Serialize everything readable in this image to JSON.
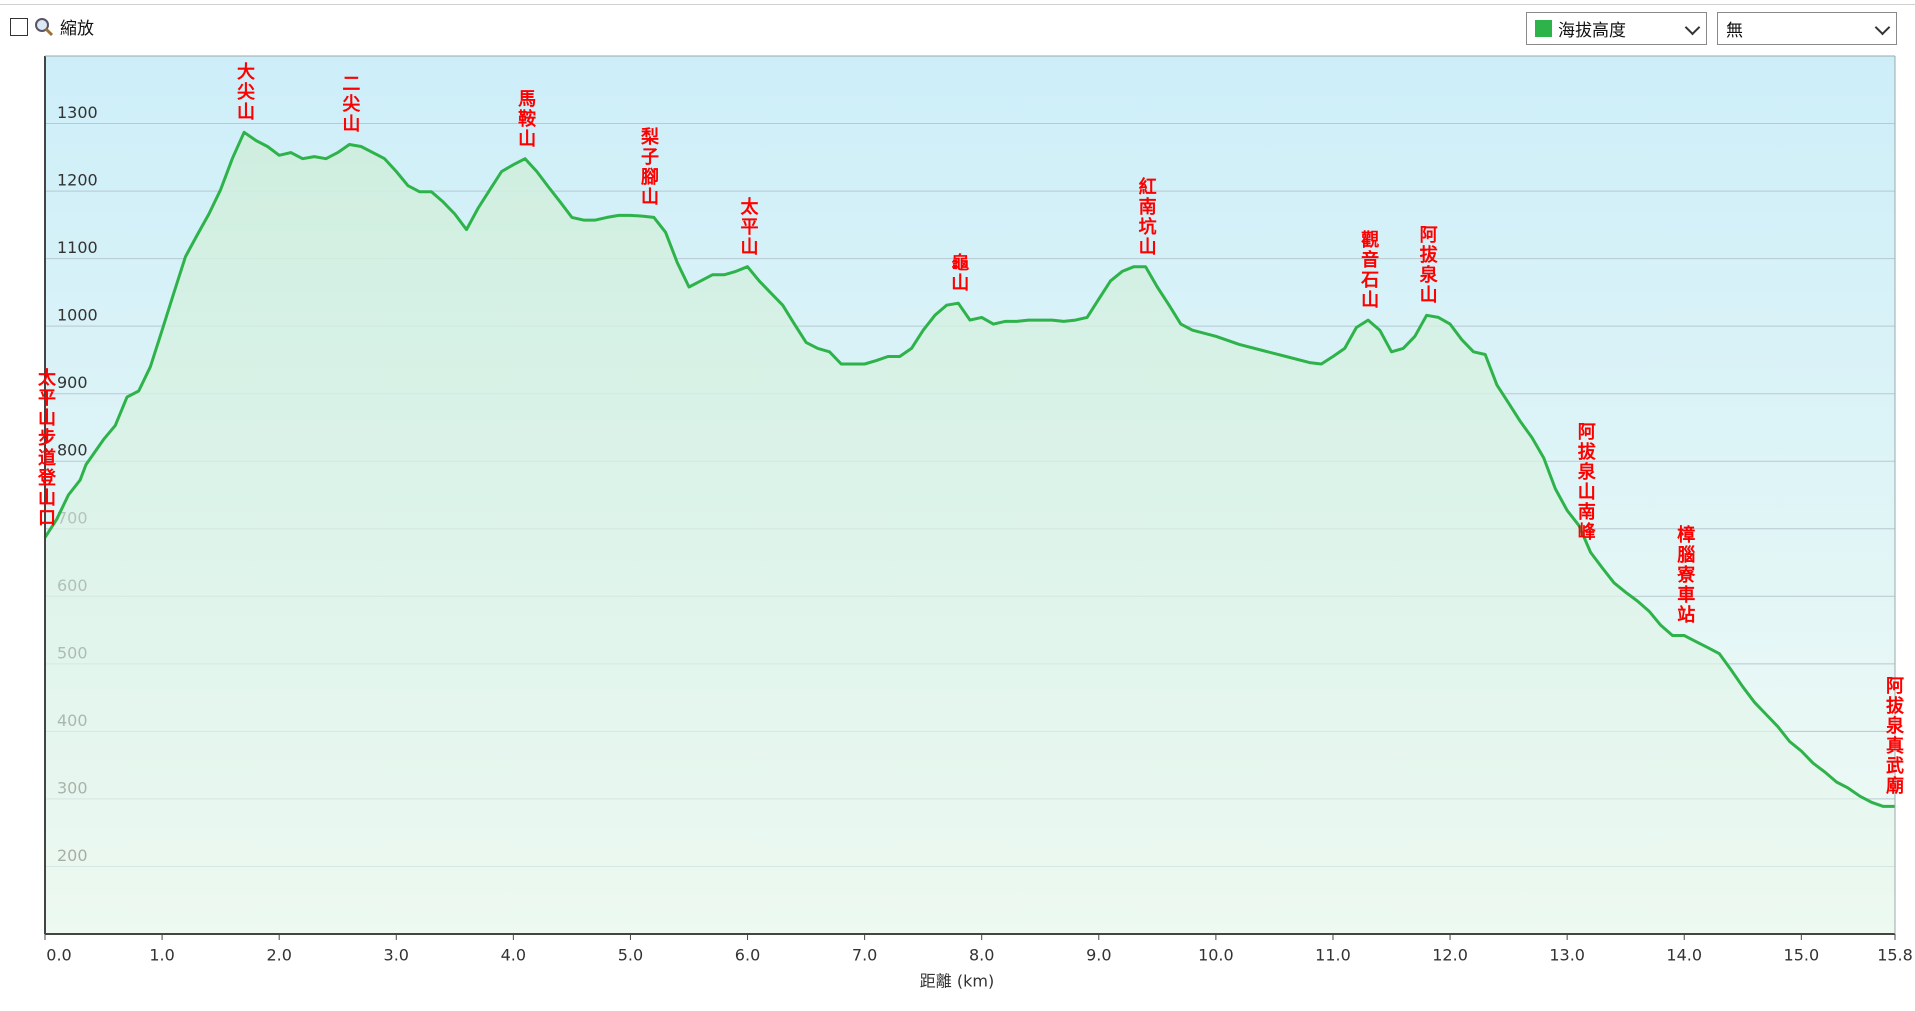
{
  "controls": {
    "zoom_label": "縮放",
    "compare_select": "無"
  },
  "chart_data": {
    "type": "area",
    "x_label": "距離 (km)",
    "xlim": [
      0,
      15.8
    ],
    "ylim": [
      100,
      1400
    ],
    "xticks": [
      {
        "value": 0,
        "label": "0.0"
      },
      {
        "value": 1,
        "label": "1.0"
      },
      {
        "value": 2,
        "label": "2.0"
      },
      {
        "value": 3,
        "label": "3.0"
      },
      {
        "value": 4,
        "label": "4.0"
      },
      {
        "value": 5,
        "label": "5.0"
      },
      {
        "value": 6,
        "label": "6.0"
      },
      {
        "value": 7,
        "label": "7.0"
      },
      {
        "value": 8,
        "label": "8.0"
      },
      {
        "value": 9,
        "label": "9.0"
      },
      {
        "value": 10,
        "label": "10.0"
      },
      {
        "value": 11,
        "label": "11.0"
      },
      {
        "value": 12,
        "label": "12.0"
      },
      {
        "value": 13,
        "label": "13.0"
      },
      {
        "value": 14,
        "label": "14.0"
      },
      {
        "value": 15,
        "label": "15.0"
      },
      {
        "value": 15.8,
        "label": "15.8"
      }
    ],
    "yticks": [
      200,
      300,
      400,
      500,
      600,
      700,
      800,
      900,
      1000,
      1100,
      1200,
      1300
    ],
    "grid": true,
    "x": [
      0,
      0.1,
      0.2,
      0.3,
      0.35,
      0.5,
      0.6,
      0.7,
      0.8,
      0.9,
      1.0,
      1.1,
      1.2,
      1.3,
      1.4,
      1.5,
      1.6,
      1.7,
      1.8,
      1.9,
      2.0,
      2.1,
      2.2,
      2.3,
      2.4,
      2.5,
      2.6,
      2.7,
      2.8,
      2.9,
      3.0,
      3.1,
      3.2,
      3.3,
      3.4,
      3.5,
      3.6,
      3.7,
      3.8,
      3.9,
      4.0,
      4.1,
      4.2,
      4.3,
      4.4,
      4.5,
      4.6,
      4.7,
      4.8,
      4.9,
      5.0,
      5.1,
      5.2,
      5.3,
      5.4,
      5.5,
      5.6,
      5.7,
      5.8,
      5.9,
      6.0,
      6.1,
      6.2,
      6.3,
      6.4,
      6.5,
      6.6,
      6.7,
      6.8,
      6.9,
      7.0,
      7.1,
      7.2,
      7.3,
      7.4,
      7.5,
      7.6,
      7.7,
      7.8,
      7.9,
      8.0,
      8.1,
      8.2,
      8.3,
      8.4,
      8.5,
      8.6,
      8.7,
      8.8,
      8.9,
      9.0,
      9.1,
      9.2,
      9.3,
      9.4,
      9.5,
      9.6,
      9.7,
      9.8,
      10.0,
      10.2,
      10.4,
      10.6,
      10.8,
      10.9,
      11.0,
      11.1,
      11.2,
      11.3,
      11.4,
      11.5,
      11.6,
      11.7,
      11.8,
      11.9,
      12.0,
      12.1,
      12.2,
      12.3,
      12.4,
      12.5,
      12.6,
      12.7,
      12.8,
      12.9,
      13.0,
      13.1,
      13.2,
      13.3,
      13.4,
      13.5,
      13.6,
      13.7,
      13.8,
      13.9,
      14.0,
      14.1,
      14.2,
      14.3,
      14.4,
      14.5,
      14.6,
      14.7,
      14.8,
      14.9,
      15.0,
      15.1,
      15.2,
      15.3,
      15.4,
      15.5,
      15.6,
      15.7,
      15.8
    ],
    "series": [
      {
        "name": "海拔高度",
        "color": "#2db34a",
        "values": [
          687,
          714,
          750,
          772,
          795,
          832,
          853,
          895,
          904,
          940,
          994,
          1049,
          1103,
          1135,
          1166,
          1202,
          1248,
          1287,
          1275,
          1266,
          1253,
          1257,
          1248,
          1251,
          1248,
          1257,
          1269,
          1266,
          1257,
          1248,
          1229,
          1208,
          1199,
          1199,
          1184,
          1166,
          1143,
          1175,
          1202,
          1229,
          1239,
          1248,
          1229,
          1206,
          1184,
          1161,
          1157,
          1157,
          1161,
          1164,
          1164,
          1163,
          1161,
          1139,
          1094,
          1058,
          1067,
          1076,
          1076,
          1081,
          1088,
          1067,
          1049,
          1031,
          1003,
          976,
          967,
          962,
          944,
          944,
          944,
          949,
          955,
          955,
          967,
          994,
          1016,
          1031,
          1034,
          1009,
          1013,
          1003,
          1007,
          1007,
          1009,
          1009,
          1009,
          1007,
          1009,
          1013,
          1040,
          1067,
          1081,
          1088,
          1088,
          1058,
          1031,
          1003,
          994,
          985,
          973,
          964,
          955,
          946,
          944,
          955,
          967,
          998,
          1009,
          994,
          962,
          967,
          985,
          1016,
          1013,
          1003,
          980,
          962,
          958,
          913,
          886,
          859,
          835,
          805,
          759,
          727,
          705,
          665,
          642,
          620,
          606,
          593,
          578,
          557,
          542,
          542,
          533,
          524,
          515,
          491,
          466,
          443,
          425,
          407,
          385,
          371,
          353,
          340,
          325,
          316,
          304,
          295,
          289,
          289
        ]
      }
    ],
    "annotations": [
      {
        "text": "太平山步道登山口",
        "x": 0
      },
      {
        "text": "大尖山",
        "x": 1.7
      },
      {
        "text": "二尖山",
        "x": 2.6
      },
      {
        "text": "馬鞍山",
        "x": 4.1
      },
      {
        "text": "梨子腳山",
        "x": 5.15
      },
      {
        "text": "太平山",
        "x": 6.0
      },
      {
        "text": "龜山",
        "x": 7.8
      },
      {
        "text": "紅南坑山",
        "x": 9.4
      },
      {
        "text": "觀音石山",
        "x": 11.3
      },
      {
        "text": "阿拔泉山",
        "x": 11.8
      },
      {
        "text": "阿拔泉山南峰",
        "x": 13.15
      },
      {
        "text": "樟腦寮車站",
        "x": 14.0
      },
      {
        "text": "阿拔泉真武廟",
        "x": 15.8
      }
    ]
  }
}
